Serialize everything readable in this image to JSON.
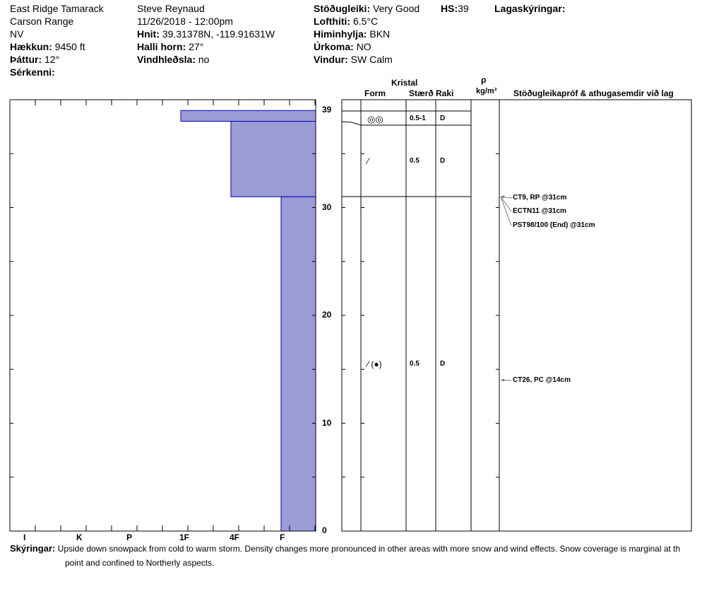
{
  "header": {
    "location": "East Ridge Tamarack",
    "range": "Carson Range",
    "state": "NV",
    "elevation_label": "Hækkun:",
    "elevation": "9450 ft",
    "aspect_label": "Þáttur:",
    "aspect": "12°",
    "features_label": "Sérkenni:",
    "observer": "Steve Reynaud",
    "datetime": "11/26/2018 - 12:00pm",
    "coords_label": "Hnit:",
    "coords": "39.31378N, -119.91631W",
    "slope_label": "Halli horn:",
    "slope": "27°",
    "wind_loading_label": "Vindhleðsla:",
    "wind_loading": "no",
    "stability_label": "Stöðugleiki:",
    "stability": "Very Good",
    "hs_label": "HS:",
    "hs": "39",
    "air_temp_label": "Lofthiti:",
    "air_temp": "6.5°C",
    "sky_label": "Himinhylja:",
    "sky": "BKN",
    "precip_label": "Úrkoma:",
    "precip": "NO",
    "wind_label": "Vindur:",
    "wind": "SW Calm",
    "legend_label": "Lagaskýringar:"
  },
  "table_headers": {
    "crystal": "Kristal",
    "form": "Form",
    "size": "Stærð",
    "moisture": "Raki",
    "rho": "ρ",
    "density_unit": "kg/m³",
    "comments": "Stöðugleikapróf & athugasemdir við lag"
  },
  "hardness_labels": [
    "I",
    "K",
    "P",
    "1F",
    "4F",
    "F"
  ],
  "depth_ticks": [
    "0",
    "10",
    "20",
    "30",
    "39"
  ],
  "layers": [
    {
      "top": 39,
      "bottom": 38,
      "hardness": 3,
      "form": "◎◎",
      "size": "0.5-1",
      "moisture": "D"
    },
    {
      "top": 38,
      "bottom": 31,
      "hardness": 4,
      "form": "⁄",
      "size": "0.5",
      "moisture": "D"
    },
    {
      "top": 31,
      "bottom": 0,
      "hardness": 5,
      "form": "⁄ (●)",
      "size": "0.5",
      "moisture": "D"
    }
  ],
  "tests": [
    {
      "depth": 31,
      "text": "CT9, RP @31cm"
    },
    {
      "depth": 31,
      "text": "ECTN11 @31cm"
    },
    {
      "depth": 31,
      "text": "PST98/100 (End) @31cm"
    },
    {
      "depth": 14,
      "text": "CT26, PC @14cm"
    }
  ],
  "notes_label": "Skýringar:",
  "notes_line1": "Upside down snowpack from cold to warm storm.  Density changes more pronounced in other areas with more snow and wind effects.  Snow coverage is marginal at th",
  "notes_line2": "point and confined to Northerly aspects.",
  "colors": {
    "bar_fill": "#9b9bd6",
    "bar_stroke": "#0000c0",
    "arrow": "#777777"
  }
}
